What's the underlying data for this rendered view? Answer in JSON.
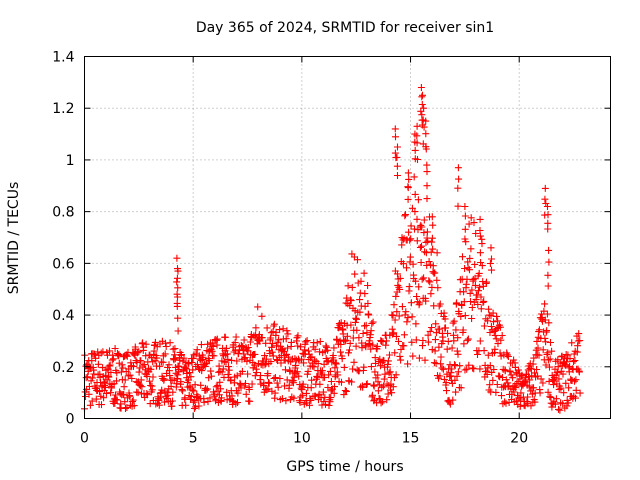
{
  "chart_data": {
    "type": "scatter",
    "title": "Day 365 of 2024, SRMTID for receiver sin1",
    "xlabel": "GPS time / hours",
    "ylabel": "SRMTID / TECUs",
    "xlim": [
      0,
      24.2
    ],
    "ylim": [
      0,
      1.4
    ],
    "x_ticks": [
      0,
      5,
      10,
      15,
      20
    ],
    "x_tick_labels": [
      "0",
      "5",
      "10",
      "15",
      "20"
    ],
    "y_ticks": [
      0,
      0.2,
      0.4,
      0.6,
      0.8,
      1.0,
      1.2,
      1.4
    ],
    "y_tick_labels": [
      "0",
      "0.2",
      "0.4",
      "0.6",
      "0.8",
      "1",
      "1.2",
      "1.4"
    ],
    "grid": true,
    "marker": "+",
    "series": [
      {
        "name": "SRMTID",
        "color": "#ff0000",
        "x_range": [
          0,
          22.8
        ],
        "sampling_interval_hours": 0.016,
        "baseline": [
          {
            "x": 0.0,
            "y": 0.15
          },
          {
            "x": 1.0,
            "y": 0.16
          },
          {
            "x": 2.0,
            "y": 0.15
          },
          {
            "x": 3.0,
            "y": 0.18
          },
          {
            "x": 4.0,
            "y": 0.17
          },
          {
            "x": 4.7,
            "y": 0.13
          },
          {
            "x": 5.5,
            "y": 0.18
          },
          {
            "x": 6.5,
            "y": 0.19
          },
          {
            "x": 7.5,
            "y": 0.18
          },
          {
            "x": 8.0,
            "y": 0.28
          },
          {
            "x": 8.6,
            "y": 0.22
          },
          {
            "x": 9.5,
            "y": 0.2
          },
          {
            "x": 10.5,
            "y": 0.17
          },
          {
            "x": 11.5,
            "y": 0.18
          },
          {
            "x": 12.3,
            "y": 0.34
          },
          {
            "x": 13.0,
            "y": 0.33
          },
          {
            "x": 13.4,
            "y": 0.18
          },
          {
            "x": 14.0,
            "y": 0.2
          },
          {
            "x": 14.5,
            "y": 0.4
          },
          {
            "x": 15.0,
            "y": 0.5
          },
          {
            "x": 15.5,
            "y": 0.55
          },
          {
            "x": 16.2,
            "y": 0.35
          },
          {
            "x": 16.8,
            "y": 0.18
          },
          {
            "x": 17.4,
            "y": 0.35
          },
          {
            "x": 18.0,
            "y": 0.45
          },
          {
            "x": 18.6,
            "y": 0.3
          },
          {
            "x": 19.2,
            "y": 0.2
          },
          {
            "x": 20.0,
            "y": 0.1
          },
          {
            "x": 20.6,
            "y": 0.13
          },
          {
            "x": 21.2,
            "y": 0.3
          },
          {
            "x": 21.6,
            "y": 0.12
          },
          {
            "x": 22.2,
            "y": 0.15
          },
          {
            "x": 22.8,
            "y": 0.22
          }
        ],
        "spikes": [
          {
            "x": 4.25,
            "y": 0.62
          },
          {
            "x": 4.3,
            "y": 0.57
          },
          {
            "x": 4.28,
            "y": 0.47
          },
          {
            "x": 14.3,
            "y": 1.12
          },
          {
            "x": 14.4,
            "y": 1.05
          },
          {
            "x": 14.9,
            "y": 0.95
          },
          {
            "x": 15.2,
            "y": 1.1
          },
          {
            "x": 15.3,
            "y": 1.13
          },
          {
            "x": 15.5,
            "y": 1.28
          },
          {
            "x": 15.55,
            "y": 1.25
          },
          {
            "x": 15.6,
            "y": 1.2
          },
          {
            "x": 15.7,
            "y": 1.15
          },
          {
            "x": 15.75,
            "y": 0.98
          },
          {
            "x": 16.0,
            "y": 0.78
          },
          {
            "x": 17.2,
            "y": 0.97
          },
          {
            "x": 17.5,
            "y": 0.82
          },
          {
            "x": 18.2,
            "y": 0.77
          },
          {
            "x": 18.7,
            "y": 0.66
          },
          {
            "x": 21.2,
            "y": 0.89
          },
          {
            "x": 21.3,
            "y": 0.82
          },
          {
            "x": 21.35,
            "y": 0.65
          }
        ]
      }
    ]
  }
}
